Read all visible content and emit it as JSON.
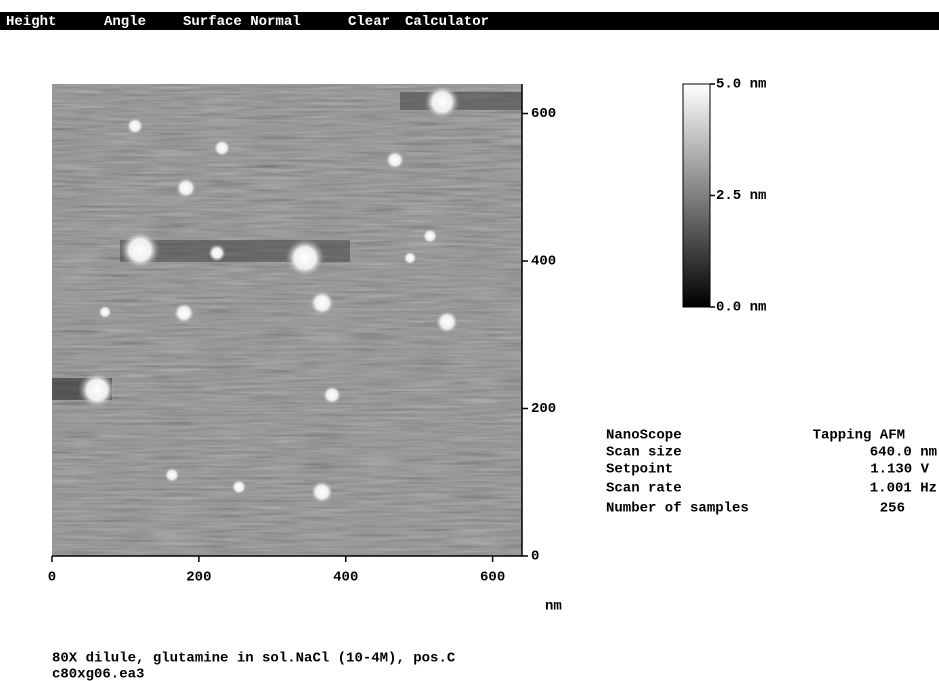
{
  "menu": {
    "items": [
      "Height",
      "Angle",
      "Surface Normal",
      "Clear",
      "Calculator"
    ]
  },
  "image": {
    "xlim": [
      0,
      640
    ],
    "ylim": [
      0,
      640
    ],
    "xticks": [
      0,
      200,
      400,
      600
    ],
    "yticks": [
      0,
      200,
      400,
      600
    ],
    "x_unit": "nm"
  },
  "colorbar": {
    "zlim": [
      0,
      5
    ],
    "ticks": [
      {
        "value": 5,
        "label": "5.0 nm"
      },
      {
        "value": 2.5,
        "label": "2.5 nm"
      },
      {
        "value": 0,
        "label": "0.0 nm"
      }
    ]
  },
  "info": {
    "rows": [
      [
        "NanoScope",
        "Tapping AFM"
      ],
      [
        "Scan size",
        "640.0 nm"
      ],
      [
        "Setpoint",
        "1.130 V"
      ],
      [
        "Scan rate",
        "1.001 Hz"
      ],
      [
        "Number of samples",
        "256"
      ]
    ]
  },
  "caption": {
    "lines": [
      "80X dilule, glutamine in sol.NaCl (10-4M), pos.C",
      "c80xg06.ea3"
    ]
  }
}
